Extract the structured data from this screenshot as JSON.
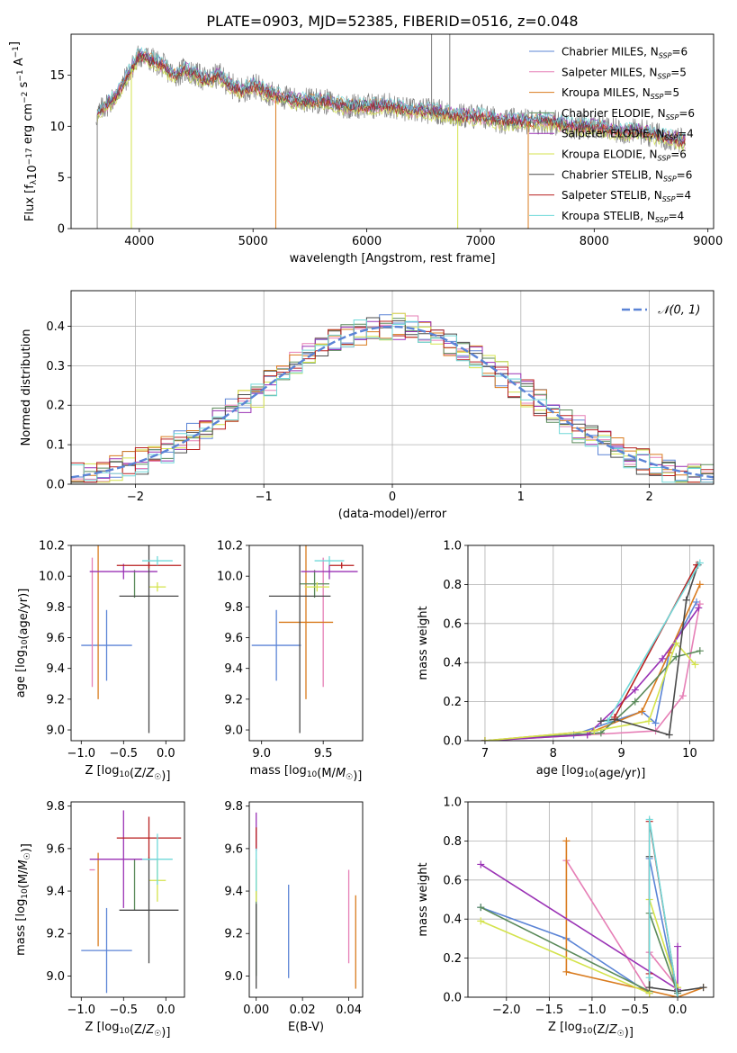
{
  "title": "PLATE=0903, MJD=52385, FIBERID=0516, z=0.048",
  "series_styles": [
    {
      "name": "Chabrier MILES",
      "nssp": "6",
      "color": "#5b84d6"
    },
    {
      "name": "Salpeter MILES",
      "nssp": "5",
      "color": "#e67fb6"
    },
    {
      "name": "Kroupa MILES",
      "nssp": "5",
      "color": "#d97b1e"
    },
    {
      "name": "Chabrier ELODIE",
      "nssp": "6",
      "color": "#5a8a5a"
    },
    {
      "name": "Salpeter ELODIE",
      "nssp": "4",
      "color": "#9a32b5"
    },
    {
      "name": "Kroupa ELODIE",
      "nssp": "6",
      "color": "#d4e34c"
    },
    {
      "name": "Chabrier STELIB",
      "nssp": "6",
      "color": "#4a4a4a"
    },
    {
      "name": "Salpeter STELIB",
      "nssp": "4",
      "color": "#b81f1f"
    },
    {
      "name": "Kroupa STELIB",
      "nssp": "4",
      "color": "#70d9d9"
    }
  ],
  "chart_data": [
    {
      "id": "spectrum",
      "type": "line",
      "xlabel": "wavelength [Angstrom, rest frame]",
      "ylabel": "Flux [f_λ10^-17 erg cm^-2 s^-1 A^-1]",
      "xlim": [
        3400,
        9050
      ],
      "ylim": [
        0,
        19
      ],
      "xticks": [
        4000,
        5000,
        6000,
        7000,
        8000,
        9000
      ],
      "yticks": [
        0,
        5,
        10,
        15
      ],
      "grid": false,
      "legend": "top-right",
      "data_color": "#808080",
      "spectrum_x": [
        3620,
        3700,
        3800,
        3900,
        4000,
        4100,
        4200,
        4300,
        4400,
        4500,
        4600,
        4700,
        4800,
        4900,
        5000,
        5200,
        5400,
        5600,
        5800,
        6000,
        6200,
        6400,
        6600,
        6800,
        7000,
        7200,
        7400,
        7600,
        7800,
        8000,
        8200,
        8400,
        8600,
        8800
      ],
      "spectrum_y": [
        11.0,
        12.0,
        13.0,
        15.0,
        17.0,
        16.5,
        16.0,
        15.0,
        15.5,
        15.0,
        14.5,
        15.0,
        14.0,
        13.5,
        14.0,
        13.0,
        12.5,
        12.5,
        12.0,
        12.0,
        12.0,
        11.5,
        11.5,
        11.0,
        11.0,
        10.5,
        10.5,
        10.5,
        10.0,
        10.0,
        9.5,
        9.5,
        9.0,
        8.5
      ],
      "model_offsets": [
        0.0,
        -0.3,
        0.2,
        -0.2,
        0.3,
        -0.5,
        0.1,
        -0.1,
        0.4
      ],
      "absorption_drops": [
        {
          "x": 3630,
          "series": "data"
        },
        {
          "x": 3930,
          "series": "Kroupa ELODIE"
        },
        {
          "x": 5200,
          "series": "Kroupa MILES"
        },
        {
          "x": 6800,
          "series": "Kroupa ELODIE"
        },
        {
          "x": 7420,
          "series": "Kroupa MILES"
        }
      ]
    },
    {
      "id": "residuals",
      "type": "step",
      "xlabel": "(data-model)/error",
      "ylabel": "Normed distribution",
      "xlim": [
        -2.5,
        2.5
      ],
      "ylim": [
        0,
        0.49
      ],
      "xticks": [
        -2,
        -1,
        0,
        1,
        2
      ],
      "yticks": [
        0.0,
        0.1,
        0.2,
        0.3,
        0.4
      ],
      "grid": true,
      "legend": "top-right",
      "bin_width": 0.1,
      "gaussian_label": "𝒩(0, 1)",
      "gaussian_color": "#5b84d6"
    },
    {
      "id": "age-vs-Z",
      "type": "errorbar",
      "xlabel": "Z [log10(Z/Z☉)]",
      "ylabel": "age  [log10(age/yr)]",
      "xlim": [
        -1.12,
        0.22
      ],
      "ylim": [
        8.93,
        10.2
      ],
      "xticks": [
        -1.0,
        -0.5,
        0.0
      ],
      "yticks": [
        9.0,
        9.2,
        9.4,
        9.6,
        9.8,
        10.0,
        10.2
      ],
      "grid": false,
      "points": [
        {
          "series": "Chabrier MILES",
          "x": -0.7,
          "xerr": 0.3,
          "y": 9.55,
          "yerr": 0.23
        },
        {
          "series": "Salpeter MILES",
          "x": -0.87,
          "xerr": 0.0,
          "y": 9.7,
          "yerr": 0.42
        },
        {
          "series": "Kroupa MILES",
          "x": -0.8,
          "xerr": 0.0,
          "y": 9.7,
          "yerr": 0.5
        },
        {
          "series": "Chabrier ELODIE",
          "x": -0.37,
          "xerr": 0.0,
          "y": 9.95,
          "yerr": 0.09
        },
        {
          "series": "Salpeter ELODIE",
          "x": -0.5,
          "xerr": 0.4,
          "y": 10.03,
          "yerr": 0.05
        },
        {
          "series": "Kroupa ELODIE",
          "x": -0.1,
          "xerr": 0.1,
          "y": 9.93,
          "yerr": 0.03
        },
        {
          "series": "Chabrier STELIB",
          "x": -0.2,
          "xerr": 0.35,
          "y": 9.87,
          "yerr": 0.89
        },
        {
          "series": "Salpeter STELIB",
          "x": -0.2,
          "xerr": 0.38,
          "y": 10.07,
          "yerr": 0.02
        },
        {
          "series": "Kroupa STELIB",
          "x": -0.1,
          "xerr": 0.18,
          "y": 10.1,
          "yerr": 0.03
        }
      ]
    },
    {
      "id": "age-vs-mass",
      "type": "errorbar",
      "xlabel": "mass [log10(M/M☉)]",
      "ylabel": "",
      "xlim": [
        8.9,
        9.82
      ],
      "ylim": [
        8.93,
        10.2
      ],
      "xticks": [
        9.0,
        9.5
      ],
      "yticks": [
        9.0,
        9.2,
        9.4,
        9.6,
        9.8,
        10.0,
        10.2
      ],
      "grid": false,
      "points": [
        {
          "series": "Chabrier MILES",
          "x": 9.12,
          "xerr": 0.2,
          "y": 9.55,
          "yerr": 0.23
        },
        {
          "series": "Salpeter MILES",
          "x": 9.5,
          "xerr": 0.0,
          "y": 9.7,
          "yerr": 0.42
        },
        {
          "series": "Kroupa MILES",
          "x": 9.36,
          "xerr": 0.22,
          "y": 9.7,
          "yerr": 0.5
        },
        {
          "series": "Chabrier ELODIE",
          "x": 9.43,
          "xerr": 0.12,
          "y": 9.95,
          "yerr": 0.09
        },
        {
          "series": "Salpeter ELODIE",
          "x": 9.55,
          "xerr": 0.23,
          "y": 10.03,
          "yerr": 0.05
        },
        {
          "series": "Kroupa ELODIE",
          "x": 9.45,
          "xerr": 0.1,
          "y": 9.93,
          "yerr": 0.03
        },
        {
          "series": "Chabrier STELIB",
          "x": 9.31,
          "xerr": 0.25,
          "y": 9.87,
          "yerr": 0.89
        },
        {
          "series": "Salpeter STELIB",
          "x": 9.65,
          "xerr": 0.1,
          "y": 10.07,
          "yerr": 0.02
        },
        {
          "series": "Kroupa STELIB",
          "x": 9.55,
          "xerr": 0.12,
          "y": 10.1,
          "yerr": 0.03
        }
      ]
    },
    {
      "id": "weight-vs-age",
      "type": "line",
      "xlabel": "age  [log10(age/yr)]",
      "ylabel": "mass weight",
      "xlim": [
        6.75,
        10.35
      ],
      "ylim": [
        0.0,
        1.0
      ],
      "xticks": [
        7,
        8,
        9,
        10
      ],
      "yticks": [
        0.0,
        0.2,
        0.4,
        0.6,
        0.8,
        1.0
      ],
      "grid": true,
      "series": [
        {
          "name": "Chabrier MILES",
          "x": [
            7.0,
            8.3,
            9.3,
            9.5,
            9.7,
            10.1
          ],
          "y": [
            0.0,
            0.03,
            0.15,
            0.09,
            0.45,
            0.71
          ]
        },
        {
          "name": "Salpeter MILES",
          "x": [
            7.0,
            8.5,
            9.5,
            9.9,
            10.15
          ],
          "y": [
            0.0,
            0.03,
            0.05,
            0.23,
            0.7
          ]
        },
        {
          "name": "Kroupa MILES",
          "x": [
            7.0,
            8.6,
            9.3,
            9.7,
            10.15
          ],
          "y": [
            0.0,
            0.05,
            0.15,
            0.45,
            0.8
          ]
        },
        {
          "name": "Chabrier ELODIE",
          "x": [
            7.0,
            8.7,
            9.2,
            9.8,
            10.15
          ],
          "y": [
            0.0,
            0.04,
            0.2,
            0.43,
            0.46
          ]
        },
        {
          "name": "Salpeter ELODIE",
          "x": [
            7.0,
            8.5,
            9.2,
            9.6,
            10.13
          ],
          "y": [
            0.0,
            0.03,
            0.26,
            0.42,
            0.68
          ]
        },
        {
          "name": "Kroupa ELODIE",
          "x": [
            7.0,
            8.6,
            9.4,
            9.8,
            10.08
          ],
          "y": [
            0.0,
            0.05,
            0.1,
            0.5,
            0.39
          ]
        },
        {
          "name": "Chabrier STELIB",
          "x": [
            8.7,
            8.9,
            9.7,
            9.95,
            10.12
          ],
          "y": [
            0.1,
            0.11,
            0.03,
            0.72,
            0.9
          ]
        },
        {
          "name": "Salpeter STELIB",
          "x": [
            8.9,
            10.1
          ],
          "y": [
            0.12,
            0.9
          ]
        },
        {
          "name": "Kroupa STELIB",
          "x": [
            8.8,
            10.15
          ],
          "y": [
            0.1,
            0.91
          ]
        }
      ]
    },
    {
      "id": "mass-vs-Z",
      "type": "errorbar",
      "xlabel": "Z [log10(Z/Z☉)]",
      "ylabel": "mass [log10(M/M☉)]",
      "xlim": [
        -1.12,
        0.22
      ],
      "ylim": [
        8.9,
        9.82
      ],
      "xticks": [
        -1.0,
        -0.5,
        0.0
      ],
      "yticks": [
        9.0,
        9.2,
        9.4,
        9.6,
        9.8
      ],
      "grid": false,
      "points": [
        {
          "series": "Chabrier MILES",
          "x": -0.7,
          "xerr": 0.3,
          "y": 9.12,
          "yerr": 0.2
        },
        {
          "series": "Salpeter MILES",
          "x": -0.87,
          "xerr": 0.0,
          "y": 9.5,
          "yerr": 0.0
        },
        {
          "series": "Kroupa MILES",
          "x": -0.8,
          "xerr": 0.0,
          "y": 9.36,
          "yerr": 0.22
        },
        {
          "series": "Chabrier ELODIE",
          "x": -0.37,
          "xerr": 0.0,
          "y": 9.43,
          "yerr": 0.12
        },
        {
          "series": "Salpeter ELODIE",
          "x": -0.5,
          "xerr": 0.4,
          "y": 9.55,
          "yerr": 0.23
        },
        {
          "series": "Kroupa ELODIE",
          "x": -0.1,
          "xerr": 0.1,
          "y": 9.45,
          "yerr": 0.1
        },
        {
          "series": "Chabrier STELIB",
          "x": -0.2,
          "xerr": 0.35,
          "y": 9.31,
          "yerr": 0.25
        },
        {
          "series": "Salpeter STELIB",
          "x": -0.2,
          "xerr": 0.38,
          "y": 9.65,
          "yerr": 0.1
        },
        {
          "series": "Kroupa STELIB",
          "x": -0.1,
          "xerr": 0.18,
          "y": 9.55,
          "yerr": 0.12
        }
      ]
    },
    {
      "id": "mass-vs-ebv",
      "type": "errorbar",
      "xlabel": "E(B-V)",
      "ylabel": "",
      "xlim": [
        -0.003,
        0.046
      ],
      "ylim": [
        8.9,
        9.82
      ],
      "xticks": [
        0.0,
        0.02,
        0.04
      ],
      "yticks": [
        9.0,
        9.2,
        9.4,
        9.6,
        9.8
      ],
      "grid": false,
      "points": [
        {
          "series": "Chabrier MILES",
          "x": 0.014,
          "xerr": 0.0,
          "y": 9.21,
          "yerr": 0.22
        },
        {
          "series": "Salpeter MILES",
          "x": 0.04,
          "xerr": 0.0,
          "y": 9.28,
          "yerr": 0.22
        },
        {
          "series": "Kroupa MILES",
          "x": 0.043,
          "xerr": 0.0,
          "y": 9.16,
          "yerr": 0.22
        },
        {
          "series": "Chabrier ELODIE",
          "x": 0.0,
          "xerr": 0.0,
          "y": 9.25,
          "yerr": 0.25
        },
        {
          "series": "Salpeter ELODIE",
          "x": 0.0,
          "xerr": 0.0,
          "y": 9.68,
          "yerr": 0.09
        },
        {
          "series": "Kroupa ELODIE",
          "x": 0.0,
          "xerr": 0.0,
          "y": 9.45,
          "yerr": 0.1
        },
        {
          "series": "Chabrier STELIB",
          "x": 0.0,
          "xerr": 0.0,
          "y": 9.14,
          "yerr": 0.2
        },
        {
          "series": "Salpeter STELIB",
          "x": 0.0,
          "xerr": 0.0,
          "y": 9.65,
          "yerr": 0.05
        },
        {
          "series": "Kroupa STELIB",
          "x": 0.0,
          "xerr": 0.0,
          "y": 9.5,
          "yerr": 0.1
        }
      ]
    },
    {
      "id": "weight-vs-Z",
      "type": "line",
      "xlabel": "Z [log10(Z/Z☉)]",
      "ylabel": "mass weight",
      "xlim": [
        -2.45,
        0.42
      ],
      "ylim": [
        0.0,
        1.0
      ],
      "xticks": [
        -2.0,
        -1.5,
        -1.0,
        -0.5,
        0.0
      ],
      "yticks": [
        0.0,
        0.2,
        0.4,
        0.6,
        0.8,
        1.0
      ],
      "grid": true,
      "series": [
        {
          "name": "Chabrier MILES",
          "x": [
            -2.3,
            -1.3,
            -0.33,
            -0.33,
            0.0
          ],
          "y": [
            0.46,
            0.3,
            0.02,
            0.71,
            0.0
          ]
        },
        {
          "name": "Salpeter MILES",
          "x": [
            -1.3,
            -0.33,
            -0.33,
            0.0
          ],
          "y": [
            0.7,
            0.02,
            0.23,
            0.05
          ]
        },
        {
          "name": "Kroupa MILES",
          "x": [
            -1.3,
            -1.3,
            0.0,
            0.3
          ],
          "y": [
            0.8,
            0.13,
            0.0,
            0.05
          ]
        },
        {
          "name": "Chabrier ELODIE",
          "x": [
            -2.3,
            -0.33,
            -0.33,
            0.0
          ],
          "y": [
            0.46,
            0.03,
            0.43,
            0.02
          ]
        },
        {
          "name": "Salpeter ELODIE",
          "x": [
            -2.3,
            0.0,
            0.0
          ],
          "y": [
            0.68,
            0.04,
            0.26
          ]
        },
        {
          "name": "Kroupa ELODIE",
          "x": [
            -2.3,
            -0.33,
            -0.33,
            0.0
          ],
          "y": [
            0.39,
            0.02,
            0.5,
            0.05
          ]
        },
        {
          "name": "Chabrier STELIB",
          "x": [
            -0.33,
            -0.33,
            0.0,
            0.3
          ],
          "y": [
            0.72,
            0.05,
            0.03,
            0.05
          ]
        },
        {
          "name": "Salpeter STELIB",
          "x": [
            -0.33,
            -0.33,
            0.0
          ],
          "y": [
            0.12,
            0.9,
            0.0
          ]
        },
        {
          "name": "Kroupa STELIB",
          "x": [
            -0.33,
            -0.33,
            0.0
          ],
          "y": [
            0.1,
            0.91,
            0.0
          ]
        }
      ]
    }
  ]
}
